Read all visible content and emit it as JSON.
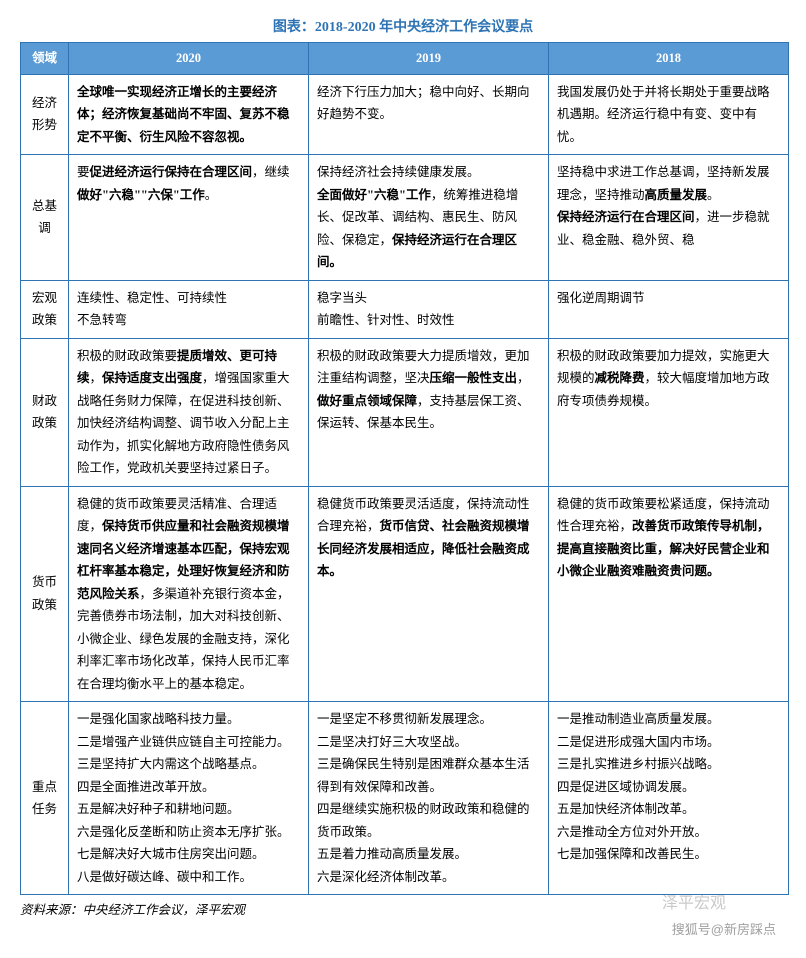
{
  "title": "图表：2018-2020 年中央经济工作会议要点",
  "colors": {
    "header_bg": "#5b9bd5",
    "border": "#2e74b5",
    "title": "#2e74b5"
  },
  "columns": [
    "领域",
    "2020",
    "2019",
    "2018"
  ],
  "rows": [
    {
      "domain": "经济形势",
      "y2020": [
        {
          "t": "全球唯一实现经济正增长的主要经济体；经济恢复基础尚不牢固、复苏不稳定不平衡、衍生风险不容忽视。",
          "b": true
        }
      ],
      "y2019": [
        {
          "t": "经济下行压力加大；",
          "b": false
        },
        {
          "t": "稳中向好、长期向好趋势不变。",
          "b": false
        }
      ],
      "y2018": [
        {
          "t": "我国发展仍处于并将长期处于重要战略机遇期。",
          "b": false
        },
        {
          "t": "经济运行稳中有变、变中有忧。",
          "b": false
        }
      ]
    },
    {
      "domain": "总基调",
      "y2020": [
        {
          "t": "要",
          "b": false
        },
        {
          "t": "促进经济运行保持在合理区间",
          "b": true
        },
        {
          "t": "，继续",
          "b": false
        },
        {
          "t": "做好\"六稳\"\"六保\"工作",
          "b": true
        },
        {
          "t": "。",
          "b": false
        }
      ],
      "y2019": [
        {
          "t": "保持经济社会持续健康发展。",
          "b": false
        },
        {
          "br": true
        },
        {
          "t": "全面做好\"六稳\"工作",
          "b": true
        },
        {
          "t": "，统筹推进稳增长、促改革、调结构、惠民生、防风险、保稳定，",
          "b": false
        },
        {
          "t": "保持经济运行在合理区间。",
          "b": true
        }
      ],
      "y2018": [
        {
          "t": "坚持稳中求进工作总基调，坚持新发展理念，坚持推动",
          "b": false
        },
        {
          "t": "高质量发展",
          "b": true
        },
        {
          "t": "。",
          "b": false
        },
        {
          "br": true
        },
        {
          "t": "保持经济运行在合理区间",
          "b": true
        },
        {
          "t": "，进一步稳就业、稳金融、稳外贸、稳",
          "b": false
        }
      ]
    },
    {
      "domain": "宏观政策",
      "y2020": [
        {
          "t": "连续性、稳定性、可持续性",
          "b": false
        },
        {
          "br": true
        },
        {
          "t": "不急转弯",
          "b": false
        }
      ],
      "y2019": [
        {
          "t": "稳字当头",
          "b": false
        },
        {
          "br": true
        },
        {
          "t": "前瞻性、针对性、时效性",
          "b": false
        }
      ],
      "y2018": [
        {
          "t": "强化逆周期调节",
          "b": false
        }
      ]
    },
    {
      "domain": "财政政策",
      "y2020": [
        {
          "t": "积极的财政政策要",
          "b": false
        },
        {
          "t": "提质增效、更可持续",
          "b": true
        },
        {
          "t": "，",
          "b": false
        },
        {
          "t": "保持适度支出强度",
          "b": true
        },
        {
          "t": "，增强国家重大战略任务财力保障，在促进科技创新、加快经济结构调整、调节收入分配上主动作为，抓实化解地方政府隐性债务风险工作，党政机关要坚持过紧日子。",
          "b": false
        }
      ],
      "y2019": [
        {
          "t": "积极的财政政策要大力提质增效，更加注重结构调整，坚决",
          "b": false
        },
        {
          "t": "压缩一般性支出",
          "b": true
        },
        {
          "t": "，",
          "b": false
        },
        {
          "t": "做好重点领域保障",
          "b": true
        },
        {
          "t": "，支持基层保工资、保运转、保基本民生。",
          "b": false
        }
      ],
      "y2018": [
        {
          "t": "积极的财政政策要加力提效，实施更大规模的",
          "b": false
        },
        {
          "t": "减税降费",
          "b": true
        },
        {
          "t": "，较大幅度增加地方政府专项债券规模。",
          "b": false
        }
      ]
    },
    {
      "domain": "货币政策",
      "y2020": [
        {
          "t": "稳健的货币政策要灵活精准、合理适度，",
          "b": false
        },
        {
          "t": "保持货币供应量和社会融资规模增速同名义经济增速基本匹配，保持宏观杠杆率基本稳定，处理好恢复经济和防范风险关系",
          "b": true
        },
        {
          "t": "，多渠道补充银行资本金，完善债券市场法制，加大对科技创新、小微企业、绿色发展的金融支持，深化利率汇率市场化改革，保持人民币汇率在合理均衡水平上的基本稳定。",
          "b": false
        }
      ],
      "y2019": [
        {
          "t": "稳健货币政策要灵活适度，保持流动性合理充裕，",
          "b": false
        },
        {
          "t": "货币信贷、社会融资规模增长同经济发展相适应，降低社会融资成本。",
          "b": true
        }
      ],
      "y2018": [
        {
          "t": "稳健的货币政策要松紧适度，保持流动性合理充裕，",
          "b": false
        },
        {
          "t": "改善货币政策传导机制，提高直接融资比重，解决好民营企业和小微企业融资难融资贵问题。",
          "b": true
        }
      ]
    },
    {
      "domain": "重点任务",
      "y2020": [
        {
          "t": "一是强化国家战略科技力量。",
          "b": false
        },
        {
          "br": true
        },
        {
          "t": "二是增强产业链供应链自主可控能力。",
          "b": false
        },
        {
          "br": true
        },
        {
          "t": "三是坚持扩大内需这个战略基点。",
          "b": false
        },
        {
          "br": true
        },
        {
          "t": "四是全面推进改革开放。",
          "b": false
        },
        {
          "br": true
        },
        {
          "t": "五是解决好种子和耕地问题。",
          "b": false
        },
        {
          "br": true
        },
        {
          "t": "六是强化反垄断和防止资本无序扩张。",
          "b": false
        },
        {
          "br": true
        },
        {
          "t": "七是解决好大城市住房突出问题。",
          "b": false
        },
        {
          "br": true
        },
        {
          "t": "八是做好碳达峰、碳中和工作。",
          "b": false
        }
      ],
      "y2019": [
        {
          "t": "一是坚定不移贯彻新发展理念。",
          "b": false
        },
        {
          "br": true
        },
        {
          "t": "二是坚决打好三大攻坚战。",
          "b": false
        },
        {
          "br": true
        },
        {
          "t": "三是确保民生特别是困难群众基本生活得到有效保障和改善。",
          "b": false
        },
        {
          "br": true
        },
        {
          "t": "四是继续实施积极的财政政策和稳健的货币政策。",
          "b": false
        },
        {
          "br": true
        },
        {
          "t": "五是着力推动高质量发展。",
          "b": false
        },
        {
          "br": true
        },
        {
          "t": "六是深化经济体制改革。",
          "b": false
        }
      ],
      "y2018": [
        {
          "t": "一是推动制造业高质量发展。",
          "b": false
        },
        {
          "br": true
        },
        {
          "t": "二是促进形成强大国内市场。",
          "b": false
        },
        {
          "br": true
        },
        {
          "t": "三是扎实推进乡村振兴战略。",
          "b": false
        },
        {
          "br": true
        },
        {
          "t": "四是促进区域协调发展。",
          "b": false
        },
        {
          "br": true
        },
        {
          "t": "五是加快经济体制改革。",
          "b": false
        },
        {
          "br": true
        },
        {
          "t": "六是推动全方位对外开放。",
          "b": false
        },
        {
          "br": true
        },
        {
          "t": "七是加强保障和改善民生。",
          "b": false
        }
      ]
    }
  ],
  "source": "资料来源：中央经济工作会议，泽平宏观",
  "watermark1": "泽平宏观",
  "watermark2": "搜狐号@新房踩点"
}
